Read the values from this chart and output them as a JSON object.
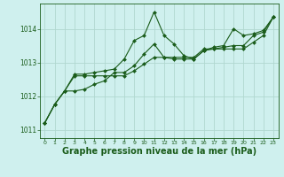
{
  "bg_color": "#cff0ee",
  "grid_color": "#b0d8d0",
  "line_color": "#1a5c1a",
  "marker_color": "#1a5c1a",
  "xlabel": "Graphe pression niveau de la mer (hPa)",
  "xlabel_fontsize": 7,
  "ylim": [
    1010.75,
    1014.75
  ],
  "xlim": [
    -0.5,
    23.5
  ],
  "yticks": [
    1011,
    1012,
    1013,
    1014
  ],
  "xticks": [
    0,
    1,
    2,
    3,
    4,
    5,
    6,
    7,
    8,
    9,
    10,
    11,
    12,
    13,
    14,
    15,
    16,
    17,
    18,
    19,
    20,
    21,
    22,
    23
  ],
  "series": [
    [
      1011.2,
      1011.75,
      1012.15,
      1012.65,
      1012.65,
      1012.7,
      1012.75,
      1012.8,
      1013.1,
      1013.65,
      1013.8,
      1014.5,
      1013.8,
      1013.55,
      1013.2,
      1013.1,
      1013.35,
      1013.45,
      1013.5,
      1014.0,
      1013.8,
      1013.85,
      1013.95,
      1014.35
    ],
    [
      1011.2,
      1011.75,
      1012.15,
      1012.15,
      1012.2,
      1012.35,
      1012.45,
      1012.7,
      1012.7,
      1012.9,
      1013.25,
      1013.55,
      1013.15,
      1013.1,
      1013.1,
      1013.1,
      1013.35,
      1013.4,
      1013.45,
      1013.5,
      1013.5,
      1013.8,
      1013.9,
      1014.35
    ],
    [
      1011.2,
      1011.75,
      1012.15,
      1012.6,
      1012.6,
      1012.6,
      1012.6,
      1012.6,
      1012.6,
      1012.75,
      1012.95,
      1013.15,
      1013.15,
      1013.15,
      1013.15,
      1013.15,
      1013.4,
      1013.4,
      1013.4,
      1013.4,
      1013.4,
      1013.6,
      1013.8,
      1014.35
    ]
  ]
}
